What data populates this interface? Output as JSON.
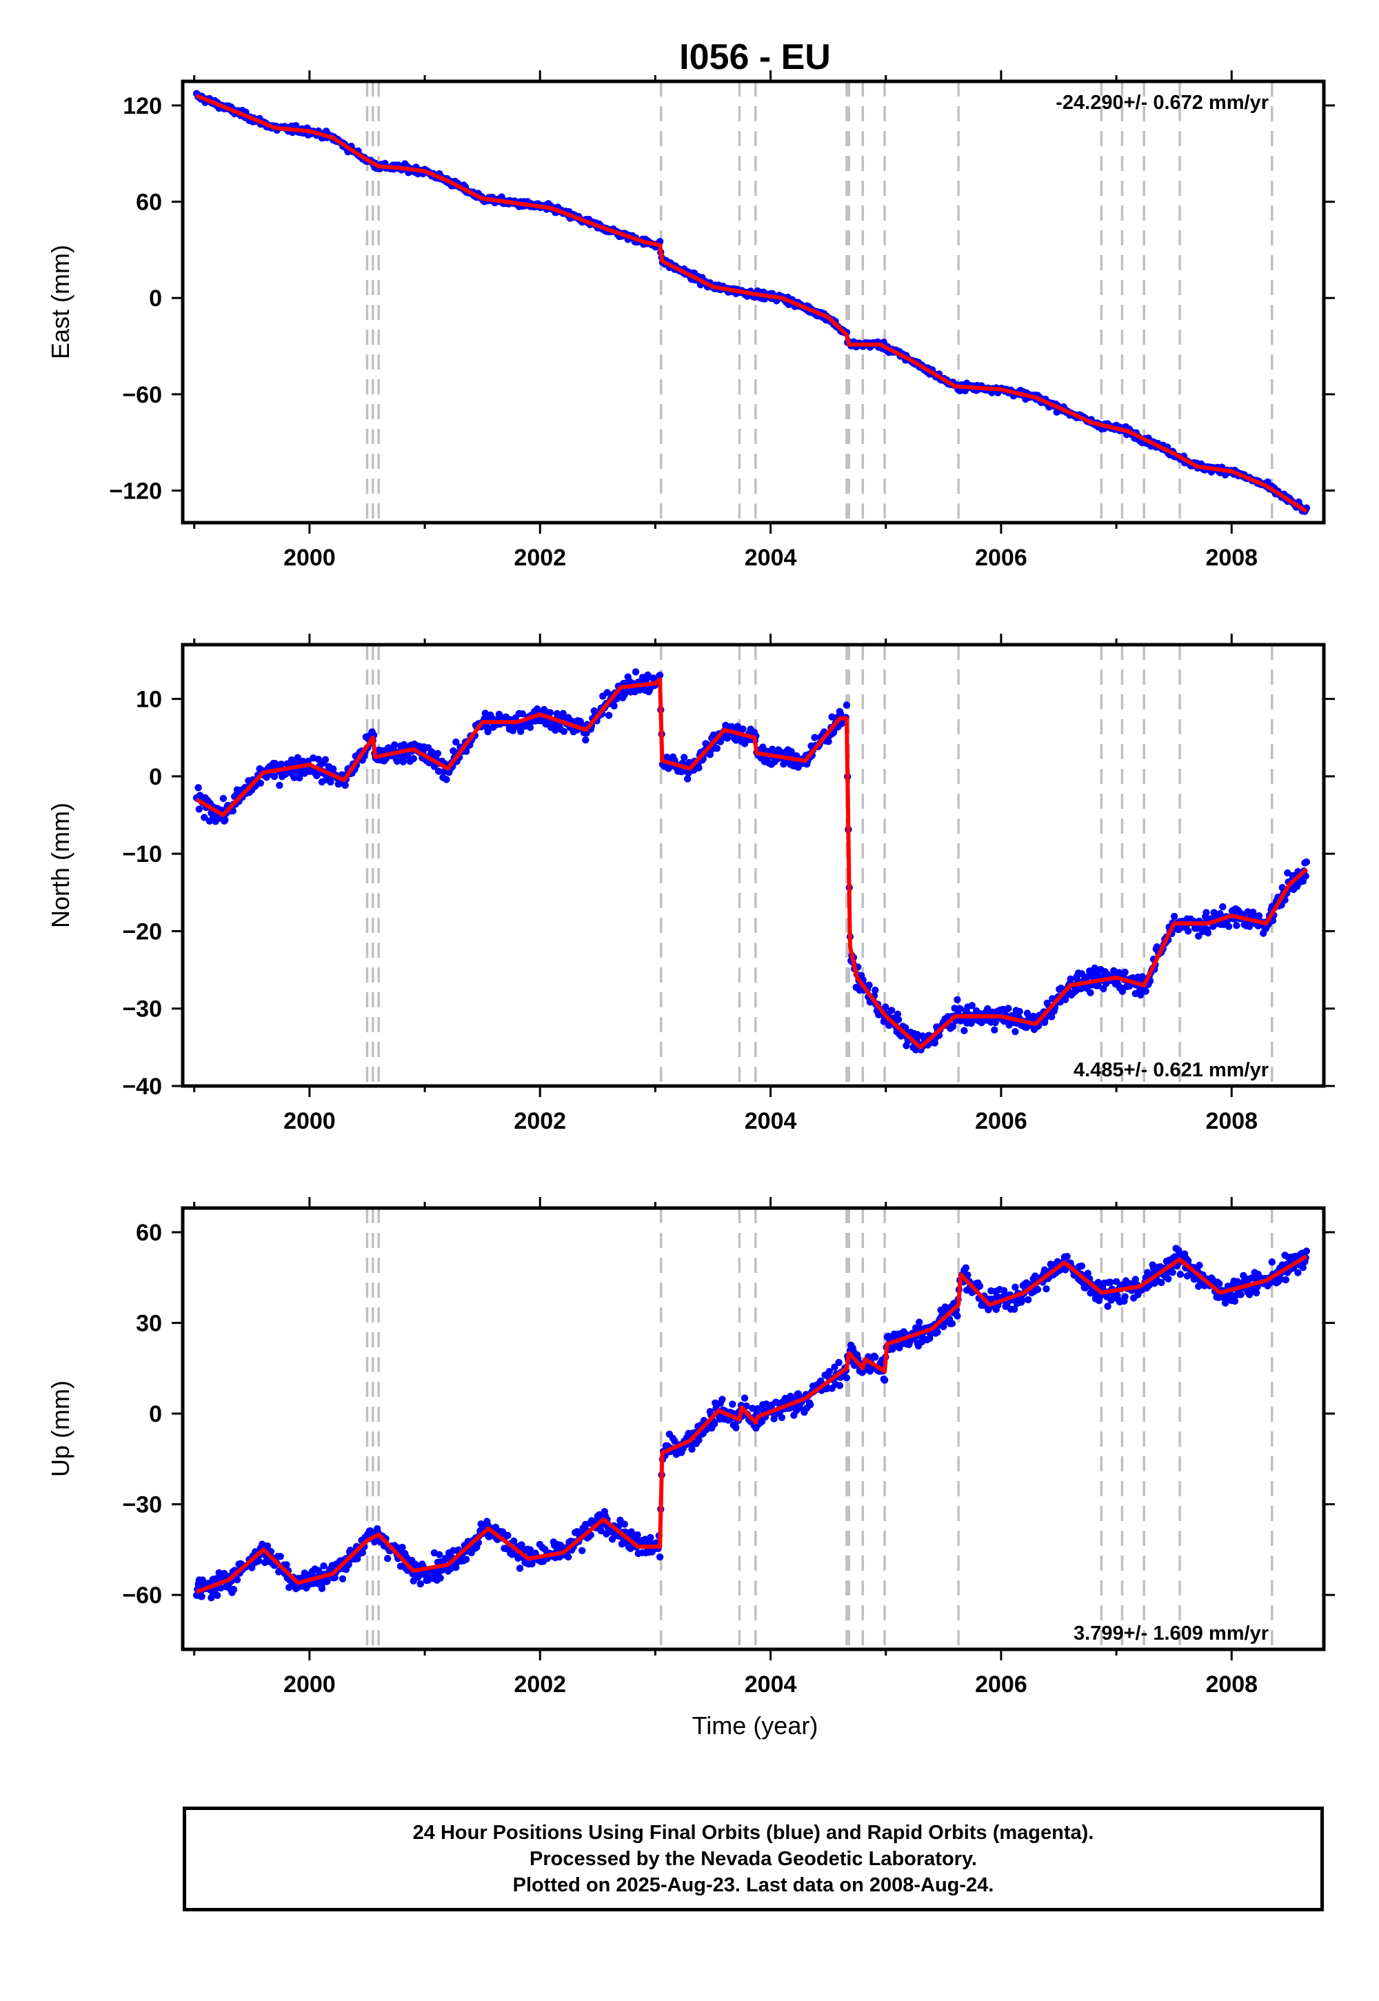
{
  "title": "I056 - EU",
  "xlabel": "Time (year)",
  "footer": {
    "line1": "24 Hour Positions Using Final Orbits (blue) and Rapid Orbits (magenta).",
    "line2": "Processed by the Nevada Geodetic Laboratory.",
    "line3": "Plotted on 2025-Aug-23. Last data on 2008-Aug-24."
  },
  "colors": {
    "points": "#0000ff",
    "model": "#ff0000",
    "steps": "#c0c0c0",
    "frame": "#000000"
  },
  "chart_data": [
    {
      "type": "scatter",
      "ylabel": "East (mm)",
      "xlim": [
        1998.9,
        2008.8
      ],
      "ylim": [
        -140,
        135
      ],
      "xticks": [
        2000,
        2002,
        2004,
        2006,
        2008
      ],
      "yticks": [
        -120,
        -60,
        0,
        60,
        120
      ],
      "rate": "-24.290+/- 0.672 mm/yr",
      "rate_position": "top-right",
      "step_dates": [
        2000.5,
        2000.55,
        2000.6,
        2003.05,
        2003.73,
        2003.87,
        2004.66,
        2004.68,
        2004.8,
        2004.99,
        2005.63,
        2006.87,
        2007.05,
        2007.24,
        2007.55,
        2008.35
      ],
      "model": {
        "x": [
          1999.02,
          1999.5,
          1999.7,
          2000.0,
          2000.2,
          2000.5,
          2000.6,
          2000.8,
          2001.0,
          2001.2,
          2001.5,
          2001.9,
          2002.1,
          2002.5,
          2002.9,
          2003.04,
          2003.06,
          2003.5,
          2003.9,
          2004.1,
          2004.5,
          2004.66,
          2004.68,
          2004.95,
          2005.2,
          2005.6,
          2006.0,
          2006.3,
          2006.8,
          2007.1,
          2007.5,
          2007.7,
          2008.0,
          2008.3,
          2008.65
        ],
        "y": [
          126,
          112,
          106,
          104,
          100,
          86,
          82,
          81,
          79,
          73,
          62,
          58,
          56,
          45,
          35,
          33,
          23,
          7,
          2,
          0,
          -12,
          -23,
          -29,
          -29,
          -38,
          -55,
          -57,
          -62,
          -78,
          -83,
          -97,
          -105,
          -108,
          -117,
          -133
        ]
      },
      "scatter_spread": 2.5
    },
    {
      "type": "scatter",
      "ylabel": "North (mm)",
      "xlim": [
        1998.9,
        2008.8
      ],
      "ylim": [
        -40,
        17
      ],
      "xticks": [
        2000,
        2002,
        2004,
        2006,
        2008
      ],
      "yticks": [
        -40,
        -30,
        -20,
        -10,
        0,
        10
      ],
      "rate": "4.485+/- 0.621 mm/yr",
      "rate_position": "bottom-right",
      "step_dates": [
        2000.5,
        2000.55,
        2000.6,
        2003.05,
        2003.73,
        2003.87,
        2004.66,
        2004.68,
        2004.8,
        2004.99,
        2005.63,
        2006.87,
        2007.05,
        2007.24,
        2007.55,
        2008.35
      ],
      "model": {
        "x": [
          1999.02,
          1999.25,
          1999.6,
          2000.0,
          2000.3,
          2000.55,
          2000.57,
          2000.9,
          2001.2,
          2001.5,
          2001.8,
          2002.0,
          2002.4,
          2002.7,
          2003.0,
          2003.04,
          2003.06,
          2003.3,
          2003.6,
          2003.86,
          2003.88,
          2004.3,
          2004.6,
          2004.66,
          2004.69,
          2004.75,
          2005.0,
          2005.3,
          2005.6,
          2006.0,
          2006.3,
          2006.6,
          2007.0,
          2007.24,
          2007.5,
          2007.8,
          2008.0,
          2008.3,
          2008.5,
          2008.65
        ],
        "y": [
          -3,
          -5,
          0.5,
          1.5,
          -0.5,
          5,
          2.5,
          3.5,
          1,
          7,
          7,
          8,
          6,
          11.5,
          12,
          12.5,
          2,
          1,
          6,
          5,
          3,
          2,
          7.5,
          7.5,
          -22,
          -26,
          -31,
          -35,
          -31,
          -31,
          -32,
          -27,
          -26,
          -27,
          -19,
          -19,
          -18,
          -19,
          -14,
          -12
        ]
      },
      "scatter_spread": 1.6
    },
    {
      "type": "scatter",
      "ylabel": "Up (mm)",
      "xlim": [
        1998.9,
        2008.8
      ],
      "ylim": [
        -78,
        68
      ],
      "xticks": [
        2000,
        2002,
        2004,
        2006,
        2008
      ],
      "yticks": [
        -60,
        -30,
        0,
        30,
        60
      ],
      "rate": "3.799+/- 1.609 mm/yr",
      "rate_position": "bottom-right",
      "step_dates": [
        2000.5,
        2000.55,
        2000.6,
        2003.05,
        2003.73,
        2003.87,
        2004.66,
        2004.68,
        2004.8,
        2004.99,
        2005.63,
        2006.87,
        2007.05,
        2007.24,
        2007.55,
        2008.35
      ],
      "model": {
        "x": [
          1999.02,
          1999.3,
          1999.6,
          1999.9,
          2000.2,
          2000.5,
          2000.6,
          2000.9,
          2001.2,
          2001.55,
          2001.9,
          2002.2,
          2002.55,
          2002.85,
          2003.04,
          2003.06,
          2003.3,
          2003.55,
          2003.73,
          2003.75,
          2003.87,
          2003.89,
          2004.3,
          2004.66,
          2004.68,
          2004.8,
          2004.82,
          2004.99,
          2005.01,
          2005.4,
          2005.63,
          2005.65,
          2005.9,
          2006.2,
          2006.55,
          2006.87,
          2007.2,
          2007.55,
          2007.9,
          2008.3,
          2008.65
        ],
        "y": [
          -59,
          -55,
          -45,
          -56,
          -53,
          -42,
          -40,
          -52,
          -50,
          -38,
          -48,
          -46,
          -35,
          -44,
          -44,
          -13,
          -9,
          1,
          -2,
          2,
          -3,
          -1,
          5,
          15,
          20,
          15,
          18,
          14,
          23,
          28,
          36,
          46,
          36,
          40,
          50,
          40,
          42,
          51,
          40,
          44,
          52
        ]
      },
      "scatter_spread": 4.5
    }
  ]
}
